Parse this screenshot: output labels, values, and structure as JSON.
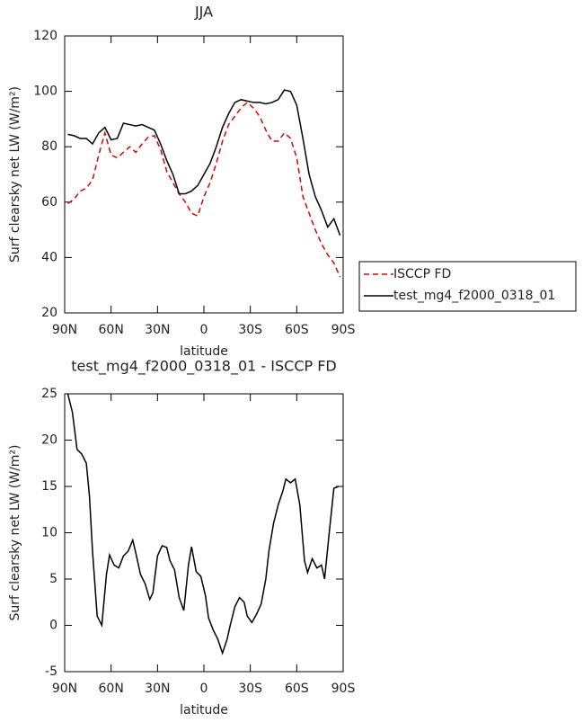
{
  "chart_data": [
    {
      "type": "line",
      "title": "JJA",
      "xlabel": "latitude",
      "ylabel": "Surf clearsky net LW (W/m²)",
      "x": [
        88,
        84,
        80,
        76,
        72,
        68,
        64,
        60,
        56,
        52,
        48,
        44,
        40,
        36,
        32,
        28,
        24,
        20,
        16,
        12,
        8,
        4,
        0,
        -4,
        -8,
        -12,
        -16,
        -20,
        -24,
        -28,
        -32,
        -36,
        -40,
        -44,
        -48,
        -52,
        -56,
        -60,
        -64,
        -68,
        -72,
        -76,
        -80,
        -84,
        -88
      ],
      "xlim": [
        90,
        -90
      ],
      "xticks": [
        {
          "value": 90,
          "label": "90N"
        },
        {
          "value": 60,
          "label": "60N"
        },
        {
          "value": 30,
          "label": "30N"
        },
        0,
        {
          "value": -30,
          "label": "30S"
        },
        {
          "value": -60,
          "label": "60S"
        },
        {
          "value": -90,
          "label": "90S"
        }
      ],
      "ylim": [
        20,
        120
      ],
      "yticks": [
        20,
        40,
        60,
        80,
        100,
        120
      ],
      "legend": "right",
      "series": [
        {
          "name": "ISCCP FD",
          "color": "#e00000",
          "style": "dashed",
          "values": [
            59.5,
            61,
            64,
            65,
            68,
            77,
            85,
            77,
            76,
            78,
            80,
            78,
            81,
            83.5,
            84,
            79,
            71,
            67,
            63,
            60,
            56,
            55,
            62,
            67,
            74,
            82,
            88,
            91,
            94,
            96,
            94,
            91,
            86,
            82,
            82,
            85,
            83,
            76,
            62,
            56,
            50,
            45,
            41,
            38,
            33
          ]
        },
        {
          "name": "test_mg4_f2000_0318_01",
          "color": "#000000",
          "style": "solid",
          "values": [
            84.5,
            84,
            83,
            83,
            81,
            85,
            87,
            82.5,
            83,
            88.5,
            88,
            87.5,
            88,
            87,
            86,
            81,
            75,
            70,
            63,
            63,
            64,
            66,
            70,
            74,
            80,
            87,
            92,
            96,
            97,
            96.5,
            96,
            96,
            95.5,
            96,
            97,
            100.5,
            100,
            95,
            83,
            70,
            62,
            57,
            51,
            54,
            48
          ]
        }
      ]
    },
    {
      "type": "line",
      "title": "test_mg4_f2000_0318_01 - ISCCP FD",
      "xlabel": "latitude",
      "ylabel": "Surf clearsky net LW (W/m²)",
      "x": [
        88,
        85,
        82,
        79,
        76,
        74,
        72,
        69,
        66,
        63,
        61,
        58,
        55,
        52,
        49,
        46,
        44,
        41,
        38,
        35,
        33,
        30,
        27,
        24,
        22,
        19,
        16,
        13,
        10,
        8,
        5,
        2,
        -1,
        -3,
        -6,
        -9,
        -12,
        -15,
        -17,
        -20,
        -23,
        -26,
        -28,
        -31,
        -34,
        -37,
        -40,
        -42,
        -45,
        -48,
        -51,
        -53,
        -56,
        -59,
        -62,
        -65,
        -67,
        -70,
        -73,
        -76,
        -78,
        -81,
        -84,
        -87
      ],
      "xlim": [
        90,
        -90
      ],
      "xticks": [
        {
          "value": 90,
          "label": "90N"
        },
        {
          "value": 60,
          "label": "60N"
        },
        {
          "value": 30,
          "label": "30N"
        },
        0,
        {
          "value": -30,
          "label": "30S"
        },
        {
          "value": -60,
          "label": "60S"
        },
        {
          "value": -90,
          "label": "90S"
        }
      ],
      "ylim": [
        -5,
        25
      ],
      "yticks": [
        -5,
        0,
        5,
        10,
        15,
        20,
        25
      ],
      "color": "#000000",
      "values": [
        25,
        23,
        19,
        18.5,
        17.5,
        14,
        8,
        1,
        0,
        5.5,
        7.6,
        6.5,
        6.2,
        7.5,
        8,
        9.2,
        7.8,
        5.5,
        4.5,
        2.8,
        3.5,
        7.5,
        8.6,
        8.4,
        7,
        6,
        3,
        1.6,
        6.5,
        8.5,
        5.8,
        5.3,
        3.2,
        0.8,
        -0.5,
        -1.5,
        -3,
        -1.5,
        0,
        2,
        3,
        2.5,
        1,
        0.3,
        1.2,
        2.3,
        5,
        8,
        11,
        13,
        14.5,
        15.8,
        15.4,
        15.8,
        13,
        7,
        5.7,
        7.2,
        6.2,
        6.5,
        5,
        10,
        14.8,
        15
      ]
    }
  ]
}
